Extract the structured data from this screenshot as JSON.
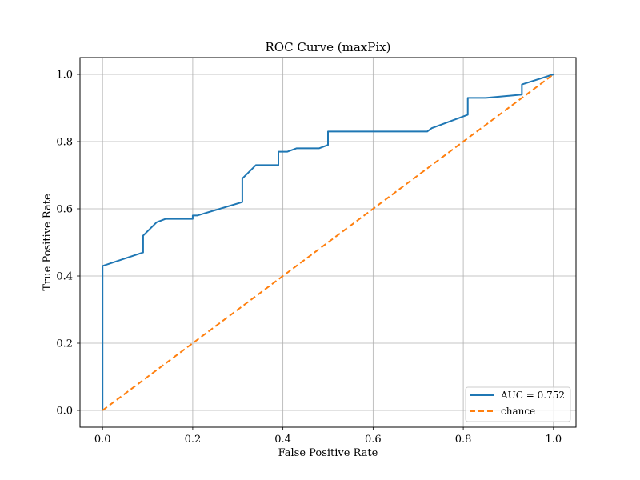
{
  "chart_data": {
    "type": "line",
    "title": "ROC Curve (maxPix)",
    "xlabel": "False Positive Rate",
    "ylabel": "True Positive Rate",
    "xlim": [
      -0.05,
      1.05
    ],
    "ylim": [
      -0.05,
      1.05
    ],
    "xticks": [
      0.0,
      0.2,
      0.4,
      0.6,
      0.8,
      1.0
    ],
    "yticks": [
      0.0,
      0.2,
      0.4,
      0.6,
      0.8,
      1.0
    ],
    "xtick_labels": [
      "0.0",
      "0.2",
      "0.4",
      "0.6",
      "0.8",
      "1.0"
    ],
    "ytick_labels": [
      "0.0",
      "0.2",
      "0.4",
      "0.6",
      "0.8",
      "1.0"
    ],
    "grid": true,
    "legend_position": "lower-right",
    "series": [
      {
        "name": "AUC = 0.752",
        "color": "#1f77b4",
        "style": "solid",
        "x": [
          0.0,
          0.0,
          0.09,
          0.09,
          0.12,
          0.14,
          0.2,
          0.2,
          0.21,
          0.31,
          0.31,
          0.34,
          0.39,
          0.39,
          0.41,
          0.43,
          0.48,
          0.5,
          0.5,
          0.72,
          0.73,
          0.81,
          0.81,
          0.85,
          0.93,
          0.93,
          1.0
        ],
        "y": [
          0.0,
          0.43,
          0.47,
          0.52,
          0.56,
          0.57,
          0.57,
          0.58,
          0.58,
          0.62,
          0.69,
          0.73,
          0.73,
          0.77,
          0.77,
          0.78,
          0.78,
          0.79,
          0.83,
          0.83,
          0.84,
          0.88,
          0.93,
          0.93,
          0.94,
          0.97,
          1.0
        ]
      },
      {
        "name": "chance",
        "color": "#ff7f0e",
        "style": "dashed",
        "x": [
          0.0,
          1.0
        ],
        "y": [
          0.0,
          1.0
        ]
      }
    ]
  }
}
